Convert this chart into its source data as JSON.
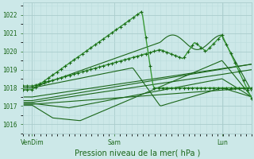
{
  "title": "Pression niveau de la mer( hPa )",
  "background_color": "#cce8e8",
  "grid_color_major": "#aacccc",
  "grid_color_minor": "#bbdddd",
  "line_dark": "#1a6618",
  "line_light": "#3a9a38",
  "ylim": [
    1015.5,
    1022.7
  ],
  "yticks": [
    1016,
    1017,
    1018,
    1019,
    1020,
    1021,
    1022
  ],
  "xtick_labels": [
    "VenDim",
    "Sam",
    "Lun"
  ],
  "xtick_positions": [
    0.04,
    0.4,
    0.87
  ]
}
